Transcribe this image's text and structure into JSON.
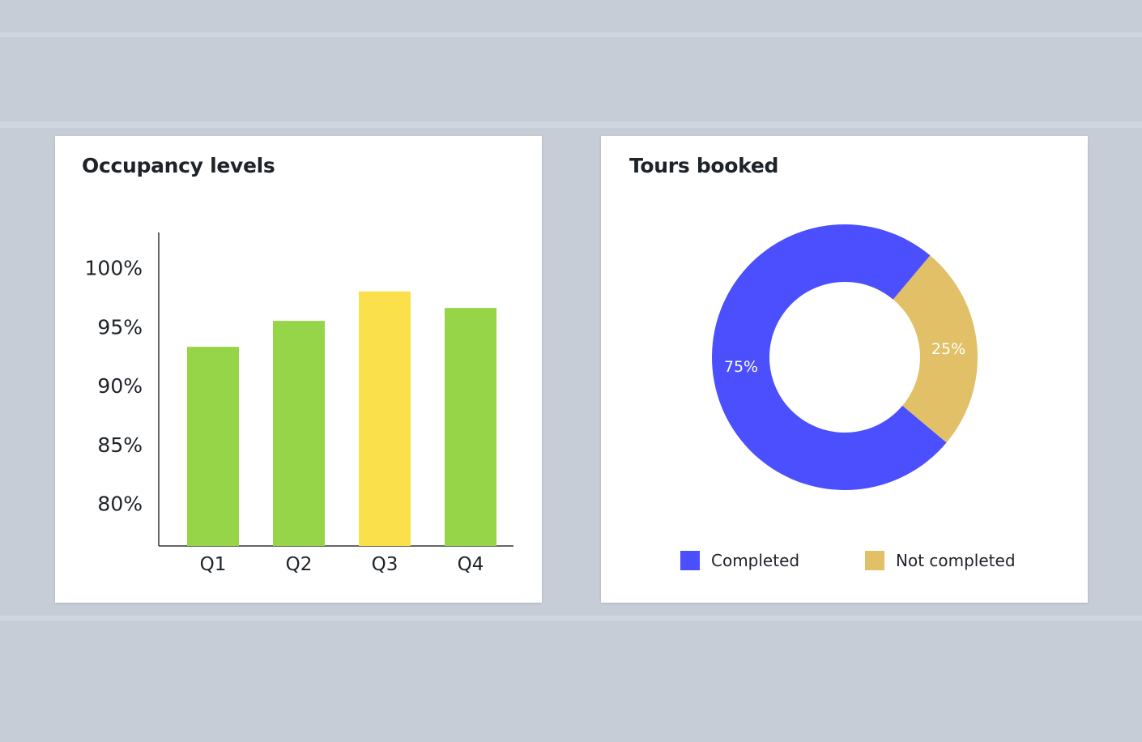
{
  "chart_data": [
    {
      "type": "bar",
      "title": "Occupancy levels",
      "categories": [
        "Q1",
        "Q2",
        "Q3",
        "Q4"
      ],
      "values": [
        93.3,
        95.5,
        98.0,
        96.6
      ],
      "colors": [
        "#96d448",
        "#96d448",
        "#fae14c",
        "#96d448"
      ],
      "yticks": [
        "100%",
        "95%",
        "90%",
        "85%",
        "80%"
      ],
      "ytick_values": [
        100,
        95,
        90,
        85,
        80
      ],
      "ylim": [
        76.4,
        103
      ],
      "xlabel": "",
      "ylabel": "",
      "grid": false
    },
    {
      "type": "pie",
      "title": "Tours booked",
      "donut": true,
      "labels": [
        "Completed",
        "Not completed"
      ],
      "values": [
        75,
        25
      ],
      "value_labels": [
        "75%",
        "25%"
      ],
      "colors": [
        "#4b4ffd",
        "#e1c068"
      ],
      "legend": "bottom"
    }
  ]
}
